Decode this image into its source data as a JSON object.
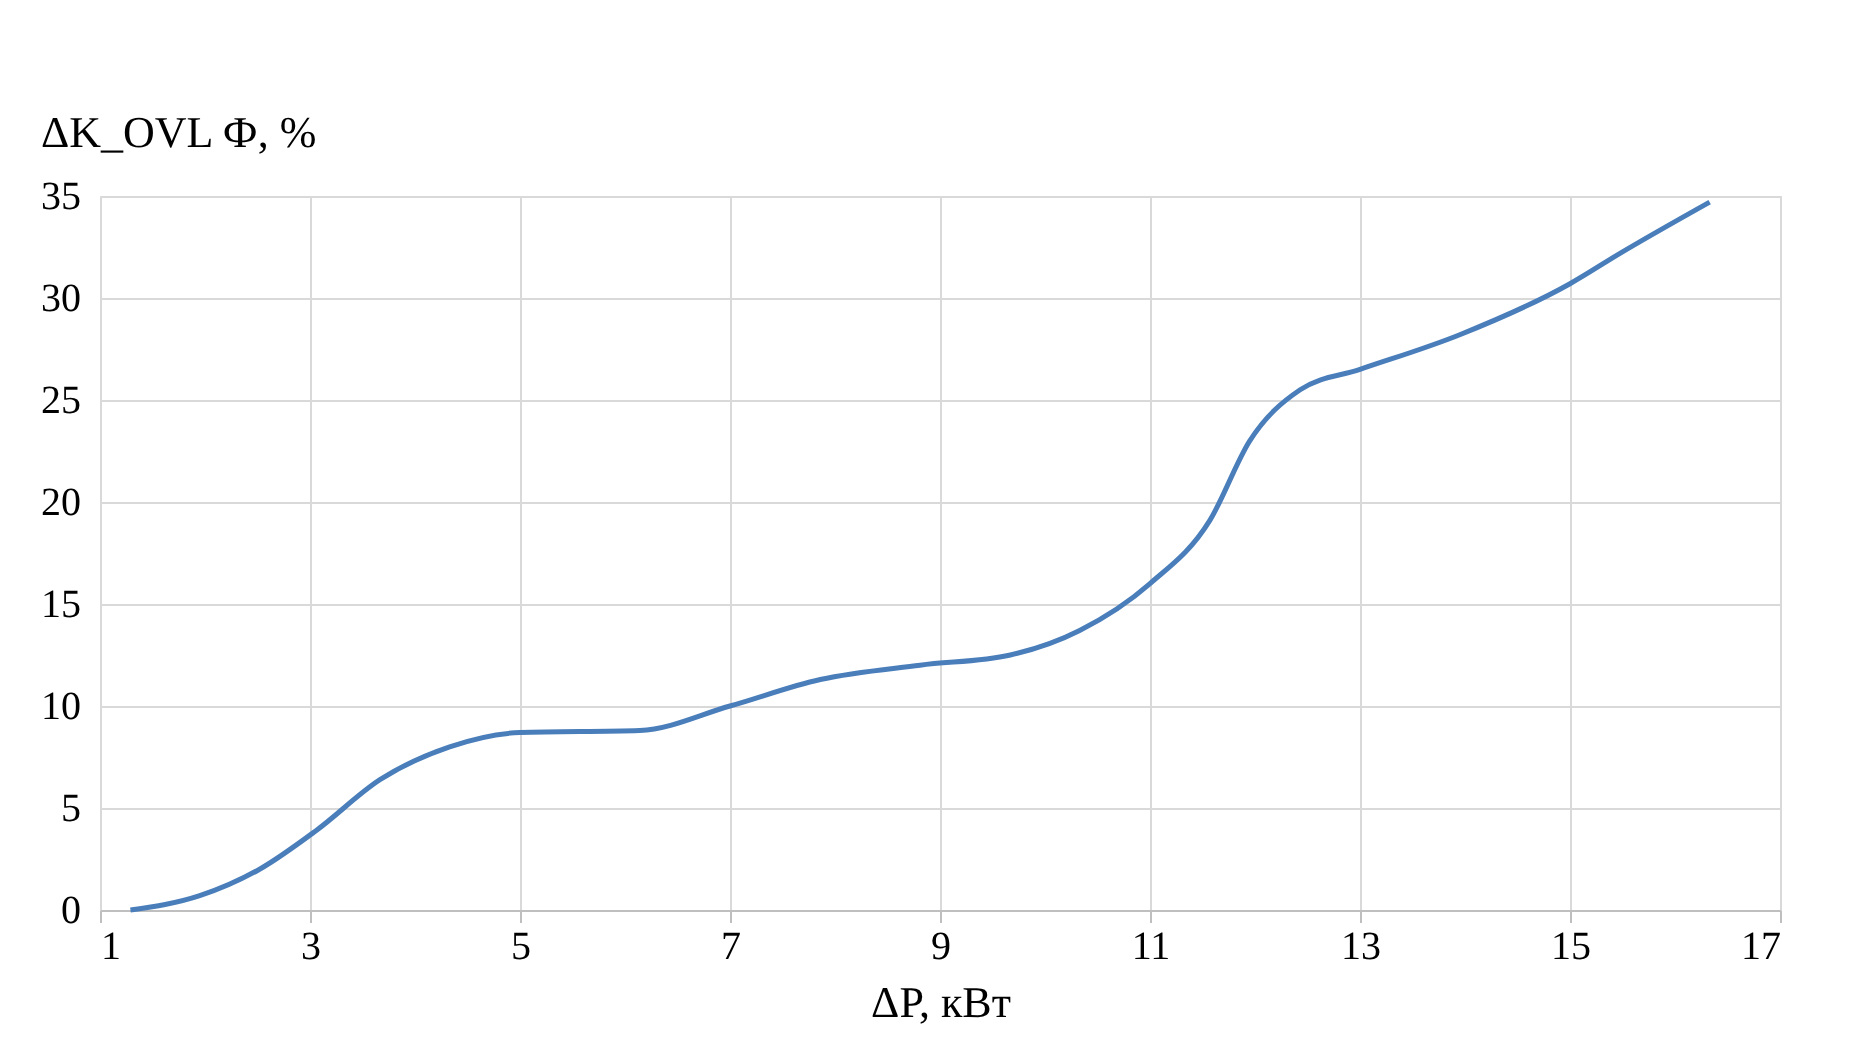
{
  "chart_data": {
    "type": "line",
    "xlabel": "ΔP, кВт",
    "ylabel": "ΔK_OVL Ф, %",
    "x": [
      1.29,
      1.95,
      2.52,
      3.06,
      3.67,
      4.33,
      5.0,
      6.14,
      7.0,
      7.86,
      8.81,
      9.67,
      10.33,
      11.0,
      11.57,
      11.95,
      12.43,
      13.0,
      13.95,
      15.0,
      15.48,
      16.33
    ],
    "series": [
      {
        "color": "#4a7ebb",
        "values": [
          0,
          0.7,
          2,
          3.9,
          6.4,
          8.0,
          8.7,
          8.8,
          10,
          11.3,
          12,
          12.5,
          13.7,
          16,
          19.1,
          23,
          25.5,
          26.5,
          28.2,
          30.7,
          32.2,
          34.7
        ]
      }
    ],
    "xlim": [
      1,
      17
    ],
    "xticks": [
      1,
      3,
      5,
      7,
      9,
      11,
      13,
      15,
      17
    ],
    "ylim": [
      0,
      35
    ],
    "yticks": [
      0,
      5,
      10,
      15,
      20,
      25,
      30,
      35
    ],
    "grid": true,
    "line_style": "solid",
    "marker": "none"
  }
}
